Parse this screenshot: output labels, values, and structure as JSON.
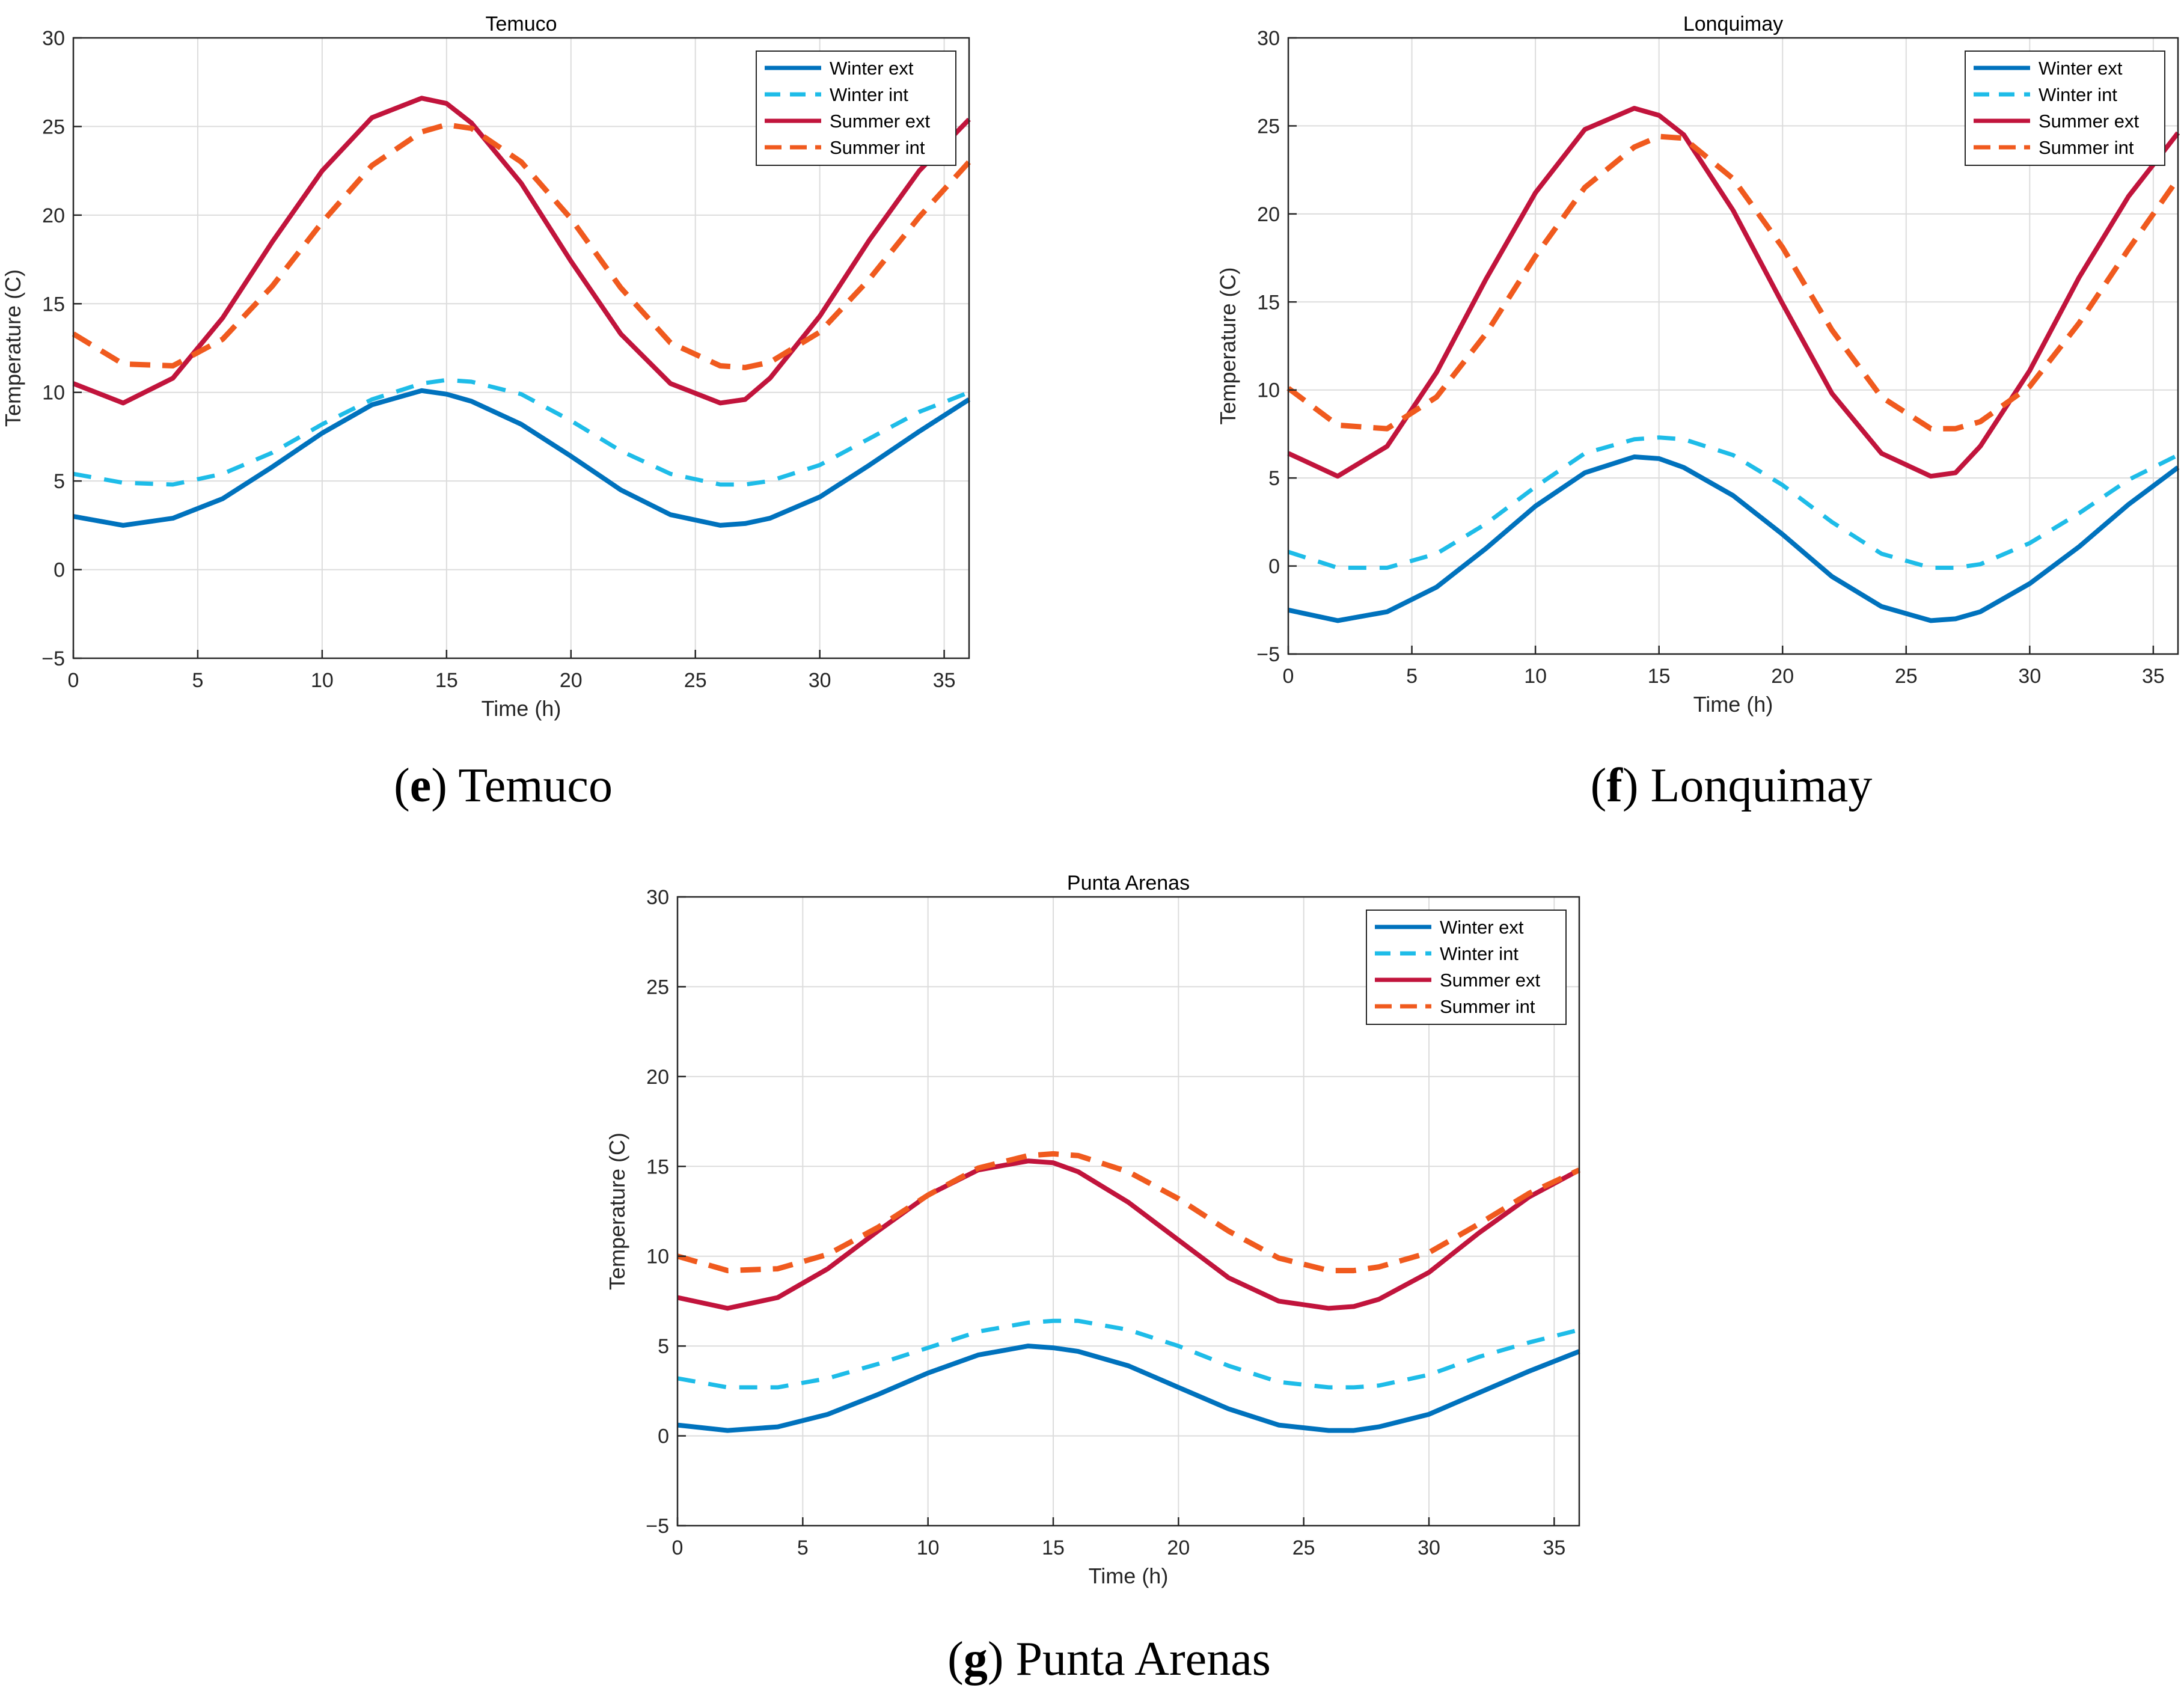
{
  "figure": {
    "captions": [
      {
        "open": "(",
        "letter": "e",
        "close": ")",
        "text": " Temuco"
      },
      {
        "open": "(",
        "letter": "f",
        "close": ")",
        "text": " Lonquimay"
      },
      {
        "open": "(",
        "letter": "g",
        "close": ")",
        "text": " Punta Arenas"
      }
    ]
  },
  "colors": {
    "winter_ext": "#0072BD",
    "winter_int": "#1EBCE8",
    "summer_ext": "#C1143C",
    "summer_int": "#F05A1E",
    "grid": "#DCDCDC",
    "axis": "#262626"
  },
  "chart_data": [
    {
      "type": "line",
      "title": "Temuco",
      "xlabel": "Time (h)",
      "ylabel": "Temperature (C)",
      "xlim": [
        0,
        36
      ],
      "ylim": [
        -5,
        30
      ],
      "xticks": [
        0,
        5,
        10,
        15,
        20,
        25,
        30,
        35
      ],
      "yticks": [
        -5,
        0,
        5,
        10,
        15,
        20,
        25,
        30
      ],
      "ytick_labels": [
        "−5",
        "0",
        "5",
        "10",
        "15",
        "20",
        "25",
        "30"
      ],
      "grid": true,
      "legend_position": "top-right",
      "x": [
        0,
        2,
        4,
        6,
        8,
        10,
        12,
        14,
        15,
        16,
        18,
        20,
        22,
        24,
        26,
        27,
        28,
        30,
        32,
        34,
        36
      ],
      "series": [
        {
          "name": "Winter ext",
          "style": "solid",
          "values": [
            3.0,
            2.5,
            2.9,
            4.0,
            5.8,
            7.7,
            9.3,
            10.1,
            9.9,
            9.5,
            8.2,
            6.4,
            4.5,
            3.1,
            2.5,
            2.6,
            2.9,
            4.1,
            5.9,
            7.8,
            9.6
          ]
        },
        {
          "name": "Winter int",
          "style": "dashed",
          "values": [
            5.4,
            4.9,
            4.8,
            5.4,
            6.6,
            8.2,
            9.6,
            10.5,
            10.7,
            10.6,
            9.9,
            8.4,
            6.7,
            5.4,
            4.8,
            4.8,
            5.0,
            5.9,
            7.4,
            8.9,
            10.0
          ]
        },
        {
          "name": "Summer ext",
          "style": "solid",
          "values": [
            10.5,
            9.4,
            10.8,
            14.2,
            18.5,
            22.5,
            25.5,
            26.6,
            26.3,
            25.2,
            21.8,
            17.4,
            13.3,
            10.5,
            9.4,
            9.6,
            10.8,
            14.3,
            18.6,
            22.5,
            25.4
          ]
        },
        {
          "name": "Summer int",
          "style": "dashed",
          "values": [
            13.3,
            11.6,
            11.5,
            13.0,
            16.0,
            19.6,
            22.8,
            24.7,
            25.1,
            24.9,
            23.0,
            19.8,
            15.9,
            12.8,
            11.5,
            11.4,
            11.7,
            13.4,
            16.4,
            19.9,
            23.0
          ]
        }
      ]
    },
    {
      "type": "line",
      "title": "Lonquimay",
      "xlabel": "Time (h)",
      "ylabel": "Temperature (C)",
      "xlim": [
        0,
        36
      ],
      "ylim": [
        -5,
        30
      ],
      "xticks": [
        0,
        5,
        10,
        15,
        20,
        25,
        30,
        35
      ],
      "yticks": [
        -5,
        0,
        5,
        10,
        15,
        20,
        25,
        30
      ],
      "ytick_labels": [
        "−5",
        "0",
        "5",
        "10",
        "15",
        "20",
        "25",
        "30"
      ],
      "grid": true,
      "legend_position": "top-right",
      "x": [
        0,
        2,
        4,
        6,
        8,
        10,
        12,
        14,
        15,
        16,
        18,
        20,
        22,
        24,
        26,
        27,
        28,
        30,
        32,
        34,
        36
      ],
      "series": [
        {
          "name": "Winter ext",
          "style": "solid",
          "values": [
            -2.5,
            -3.1,
            -2.6,
            -1.2,
            1.0,
            3.4,
            5.3,
            6.2,
            6.1,
            5.6,
            4.0,
            1.8,
            -0.6,
            -2.3,
            -3.1,
            -3.0,
            -2.6,
            -1.0,
            1.1,
            3.5,
            5.6
          ]
        },
        {
          "name": "Winter int",
          "style": "dashed",
          "values": [
            0.8,
            -0.1,
            -0.1,
            0.7,
            2.4,
            4.5,
            6.4,
            7.2,
            7.3,
            7.2,
            6.3,
            4.6,
            2.5,
            0.7,
            -0.1,
            -0.1,
            0.1,
            1.3,
            3.0,
            4.9,
            6.3
          ]
        },
        {
          "name": "Summer ext",
          "style": "solid",
          "values": [
            6.4,
            5.1,
            6.8,
            11.0,
            16.3,
            21.2,
            24.8,
            26.0,
            25.6,
            24.5,
            20.2,
            14.9,
            9.8,
            6.4,
            5.1,
            5.3,
            6.8,
            11.1,
            16.4,
            21.0,
            24.6
          ]
        },
        {
          "name": "Summer int",
          "style": "dashed",
          "values": [
            10.1,
            8.0,
            7.8,
            9.6,
            13.2,
            17.6,
            21.5,
            23.8,
            24.4,
            24.3,
            22.0,
            18.1,
            13.4,
            9.6,
            7.8,
            7.8,
            8.2,
            10.2,
            13.8,
            18.0,
            22.0
          ]
        }
      ]
    },
    {
      "type": "line",
      "title": "Punta Arenas",
      "xlabel": "Time (h)",
      "ylabel": "Temperature (C)",
      "xlim": [
        0,
        36
      ],
      "ylim": [
        -5,
        30
      ],
      "xticks": [
        0,
        5,
        10,
        15,
        20,
        25,
        30,
        35
      ],
      "yticks": [
        -5,
        0,
        5,
        10,
        15,
        20,
        25,
        30
      ],
      "ytick_labels": [
        "−5",
        "0",
        "5",
        "10",
        "15",
        "20",
        "25",
        "30"
      ],
      "grid": true,
      "legend_position": "top-right",
      "x": [
        0,
        2,
        4,
        6,
        8,
        10,
        12,
        14,
        15,
        16,
        18,
        20,
        22,
        24,
        26,
        27,
        28,
        30,
        32,
        34,
        36
      ],
      "series": [
        {
          "name": "Winter ext",
          "style": "solid",
          "values": [
            0.6,
            0.3,
            0.5,
            1.2,
            2.3,
            3.5,
            4.5,
            5.0,
            4.9,
            4.7,
            3.9,
            2.7,
            1.5,
            0.6,
            0.3,
            0.3,
            0.5,
            1.2,
            2.4,
            3.6,
            4.7
          ]
        },
        {
          "name": "Winter int",
          "style": "dashed",
          "values": [
            3.2,
            2.7,
            2.7,
            3.2,
            4.0,
            4.9,
            5.8,
            6.3,
            6.4,
            6.4,
            5.9,
            5.0,
            3.9,
            3.0,
            2.7,
            2.7,
            2.8,
            3.4,
            4.4,
            5.2,
            5.9
          ]
        },
        {
          "name": "Summer ext",
          "style": "solid",
          "values": [
            7.7,
            7.1,
            7.7,
            9.3,
            11.4,
            13.4,
            14.8,
            15.3,
            15.2,
            14.7,
            13.0,
            10.9,
            8.8,
            7.5,
            7.1,
            7.2,
            7.6,
            9.1,
            11.3,
            13.3,
            14.8
          ]
        },
        {
          "name": "Summer int",
          "style": "dashed",
          "values": [
            10.0,
            9.2,
            9.3,
            10.1,
            11.6,
            13.4,
            14.9,
            15.6,
            15.7,
            15.6,
            14.7,
            13.2,
            11.4,
            9.9,
            9.2,
            9.2,
            9.4,
            10.2,
            11.8,
            13.5,
            14.8
          ]
        }
      ]
    }
  ]
}
